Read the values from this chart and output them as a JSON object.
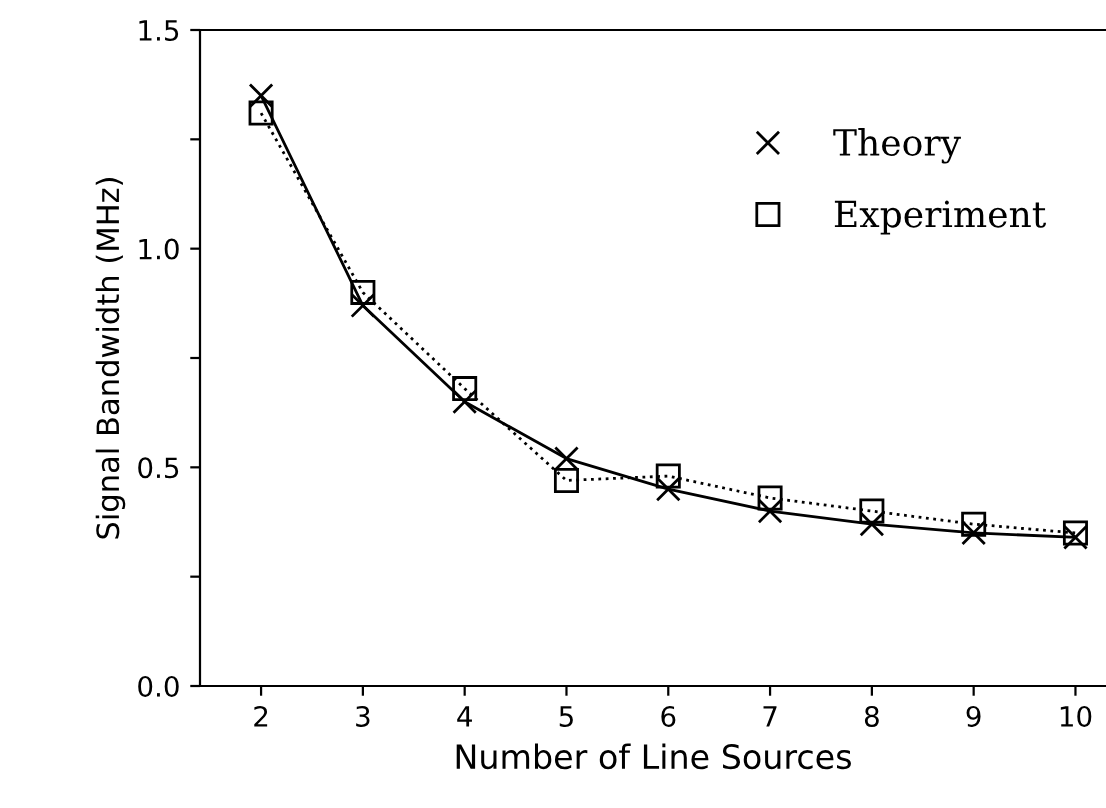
{
  "chart_data": {
    "type": "line",
    "xlabel": "Number of Line Sources",
    "ylabel": "Signal Bandwidth (MHz)",
    "x": [
      2,
      3,
      4,
      5,
      6,
      7,
      8,
      9,
      10
    ],
    "series": [
      {
        "name": "Theory",
        "color": "#000000",
        "marker": "cross",
        "line_style": "solid",
        "values": [
          1.35,
          0.87,
          0.65,
          0.52,
          0.45,
          0.4,
          0.37,
          0.35,
          0.34
        ]
      },
      {
        "name": "Experiment",
        "color": "#000000",
        "marker": "square",
        "line_style": "dotted",
        "values": [
          1.31,
          0.9,
          0.68,
          0.47,
          0.48,
          0.43,
          0.4,
          0.37,
          0.35
        ]
      }
    ],
    "xlim": [
      1.4,
      10.3
    ],
    "xticks": [
      2,
      3,
      4,
      5,
      6,
      7,
      8,
      9,
      10
    ],
    "ylim": [
      0,
      1.5
    ],
    "yticks": [
      {
        "value": 0,
        "label": "0.0"
      },
      {
        "value": 0.25,
        "label": null
      },
      {
        "value": 0.5,
        "label": "0.5"
      },
      {
        "value": 0.75,
        "label": null
      },
      {
        "value": 1.0,
        "label": "1.0"
      },
      {
        "value": 1.25,
        "label": null
      },
      {
        "value": 1.5,
        "label": "1.5"
      }
    ],
    "legend": "top right",
    "grid": false
  }
}
